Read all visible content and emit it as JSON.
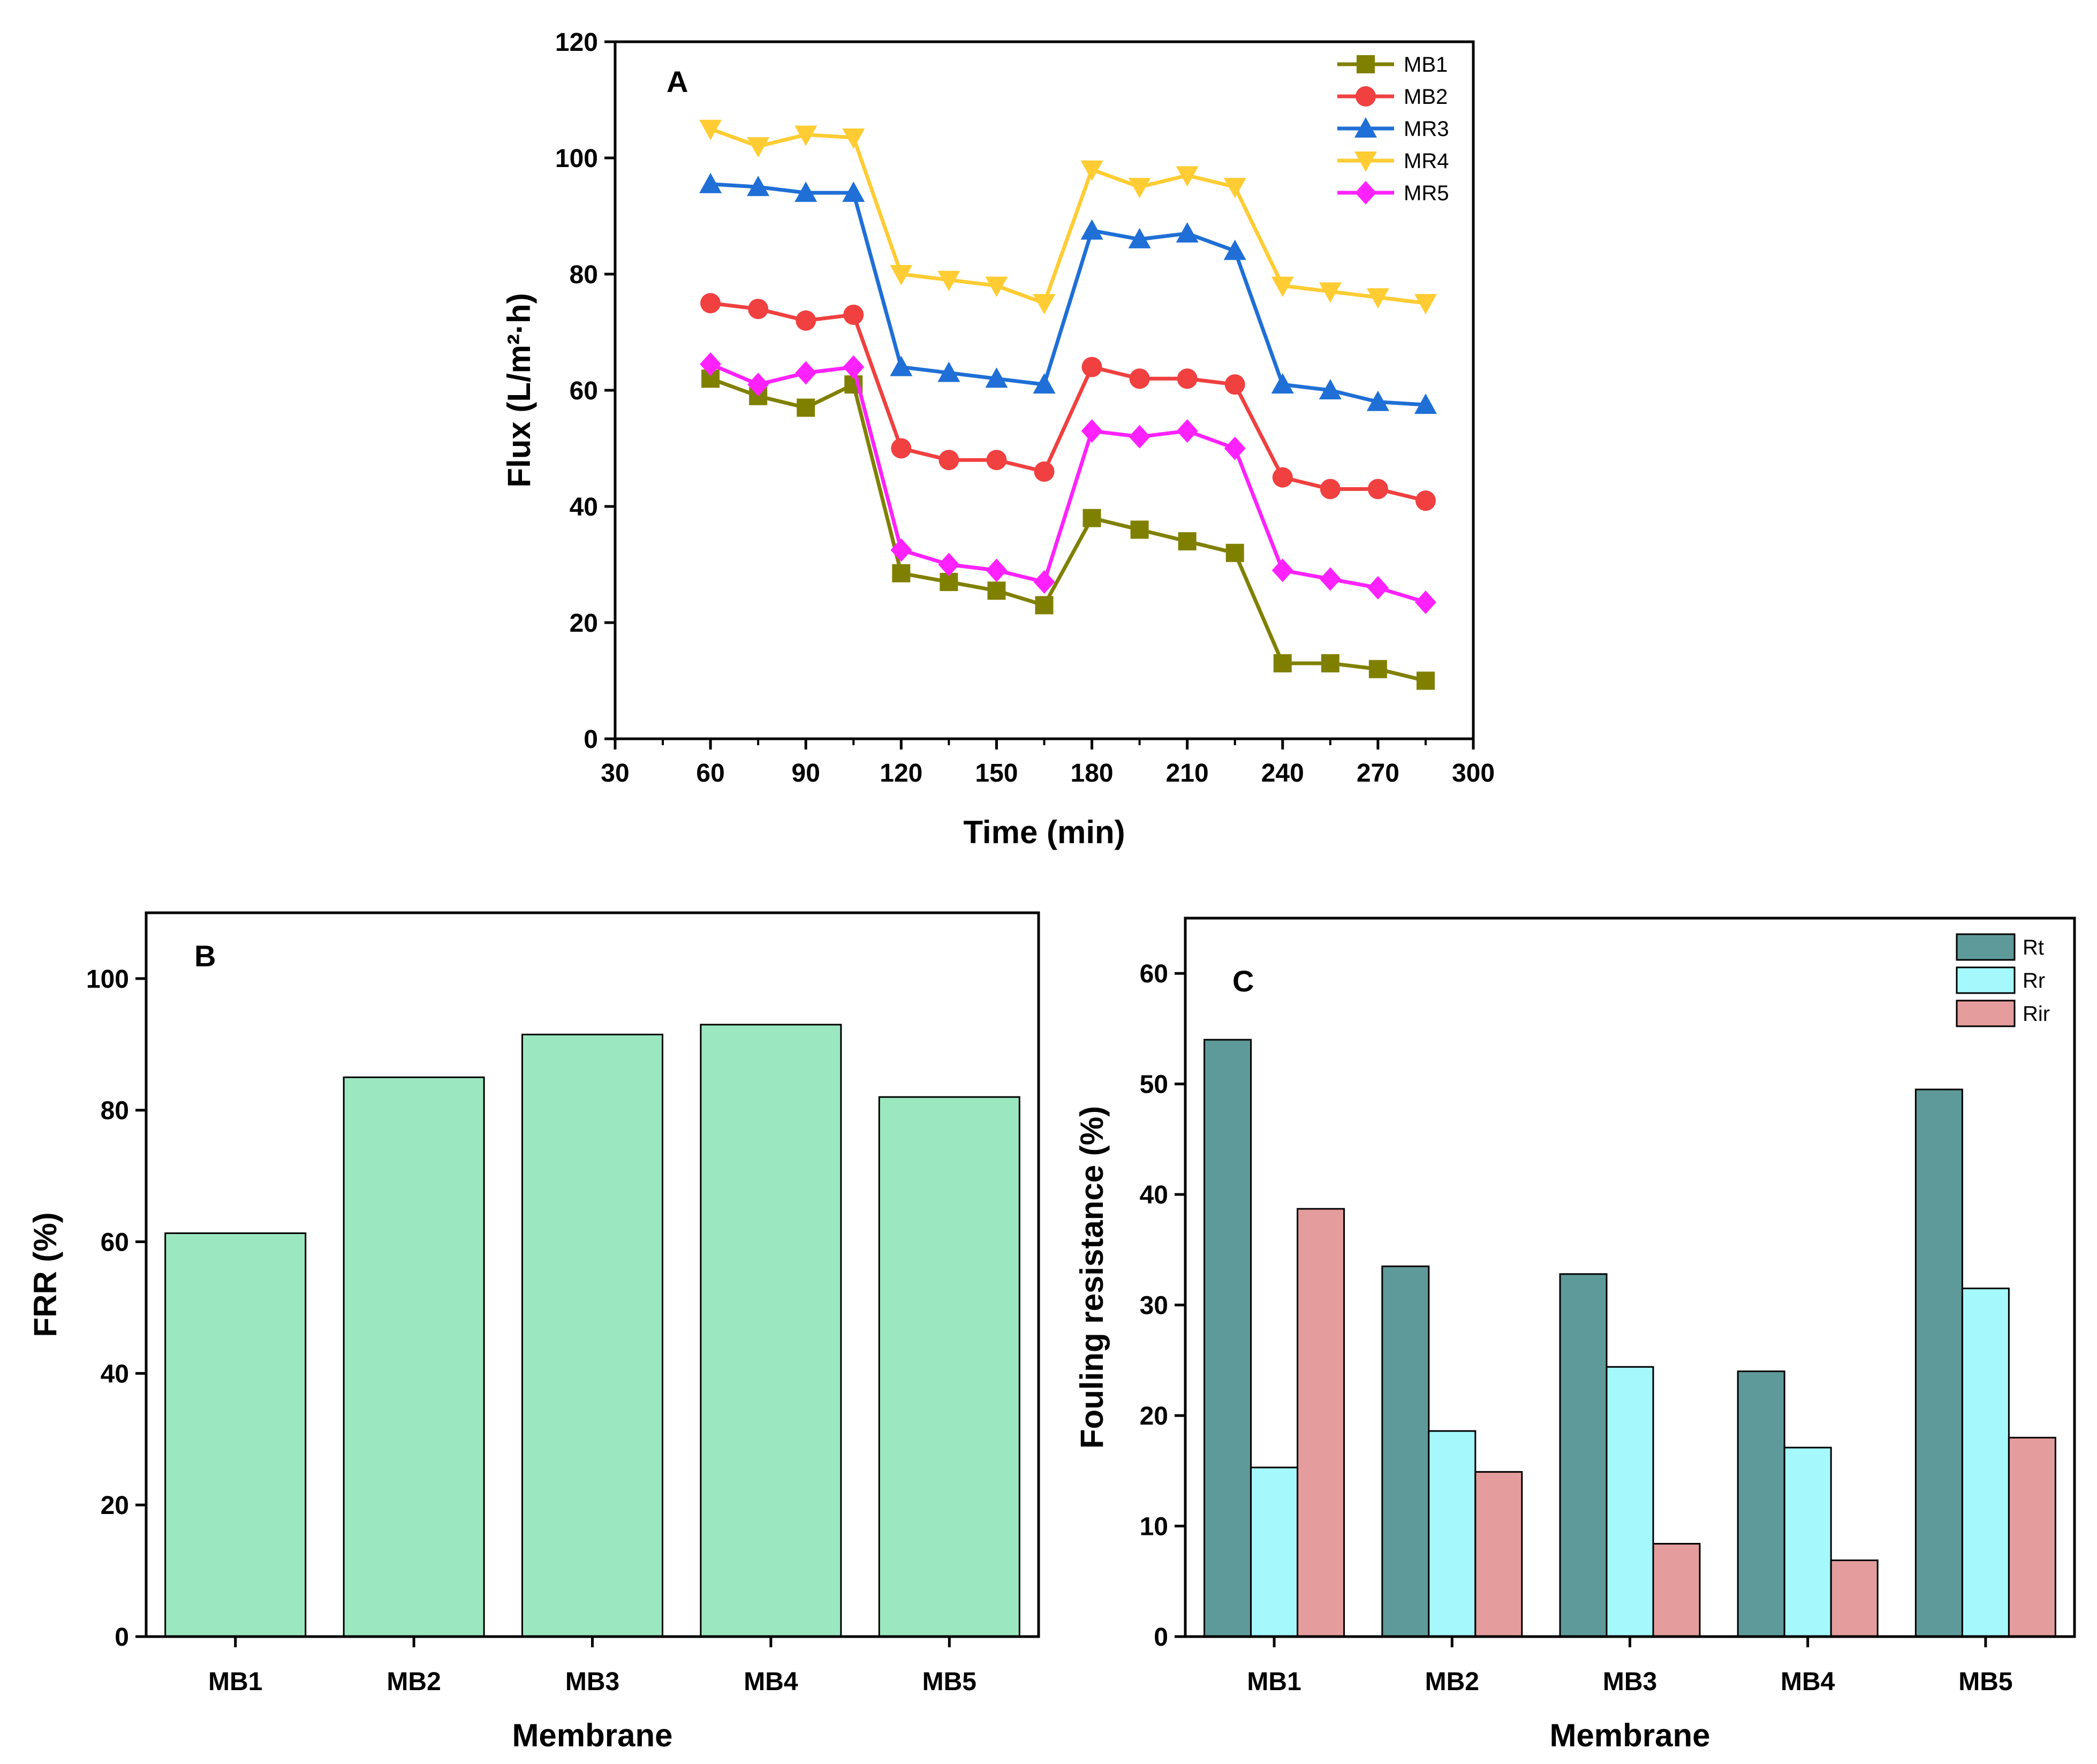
{
  "chart_data": [
    {
      "panel": "A",
      "type": "line",
      "xlabel": "Time (min)",
      "ylabel": "Flux (L/m²·h)",
      "xlim": [
        30,
        300
      ],
      "ylim": [
        0,
        120
      ],
      "xticks": [
        30,
        60,
        90,
        120,
        150,
        180,
        210,
        240,
        270,
        300
      ],
      "yticks": [
        0,
        20,
        40,
        60,
        80,
        100,
        120
      ],
      "x": [
        60,
        75,
        90,
        105,
        120,
        135,
        150,
        165,
        180,
        195,
        210,
        225,
        240,
        255,
        270,
        285
      ],
      "legend_position": "top-right",
      "series": [
        {
          "name": "MB1",
          "color": "#808000",
          "marker": "square",
          "values": [
            62,
            59,
            57,
            61,
            28.5,
            27,
            25.5,
            23,
            38,
            36,
            34,
            32,
            13,
            13,
            12,
            10
          ]
        },
        {
          "name": "MB2",
          "color": "#f04040",
          "marker": "circle",
          "values": [
            75,
            74,
            72,
            73,
            50,
            48,
            48,
            46,
            64,
            62,
            62,
            61,
            45,
            43,
            43,
            41
          ]
        },
        {
          "name": "MR3",
          "color": "#1f6fd6",
          "marker": "triangle-up",
          "values": [
            95.5,
            95,
            94,
            94,
            64,
            63,
            62,
            61,
            87.5,
            86,
            87,
            84,
            61,
            60,
            58,
            57.5
          ]
        },
        {
          "name": "MR4",
          "color": "#ffcc33",
          "marker": "triangle-down",
          "values": [
            105,
            102,
            104,
            103.5,
            80,
            79,
            78,
            75,
            98,
            95,
            97,
            95,
            78,
            77,
            76,
            75
          ]
        },
        {
          "name": "MR5",
          "color": "#ff22ff",
          "marker": "diamond",
          "values": [
            64.5,
            61,
            63,
            64,
            32.5,
            30,
            29,
            27,
            53,
            52,
            53,
            50,
            29,
            27.5,
            26,
            23.5
          ]
        }
      ]
    },
    {
      "panel": "B",
      "type": "bar",
      "xlabel": "Membrane",
      "ylabel": "FRR (%)",
      "ylim": [
        0,
        110
      ],
      "yticks": [
        0,
        20,
        40,
        60,
        80,
        100
      ],
      "categories": [
        "MB1",
        "MB2",
        "MB3",
        "MB4",
        "MB5"
      ],
      "color": "#9be8c0",
      "values": [
        61.3,
        85,
        91.5,
        93,
        82
      ]
    },
    {
      "panel": "C",
      "type": "bar",
      "xlabel": "Membrane",
      "ylabel": "Fouling resistance (%)",
      "ylim": [
        0,
        65
      ],
      "yticks": [
        0,
        10,
        20,
        30,
        40,
        50,
        60
      ],
      "categories": [
        "MB1",
        "MB2",
        "MB3",
        "MB4",
        "MB5"
      ],
      "legend_position": "top-right",
      "series": [
        {
          "name": "Rt",
          "color": "#5f9a9a",
          "values": [
            54,
            33.5,
            32.8,
            24,
            49.5
          ]
        },
        {
          "name": "Rr",
          "color": "#a5f8fb",
          "values": [
            15.3,
            18.6,
            24.4,
            17.1,
            31.5
          ]
        },
        {
          "name": "Rir",
          "color": "#e59c9c",
          "values": [
            38.7,
            14.9,
            8.4,
            6.9,
            18
          ]
        }
      ]
    }
  ]
}
